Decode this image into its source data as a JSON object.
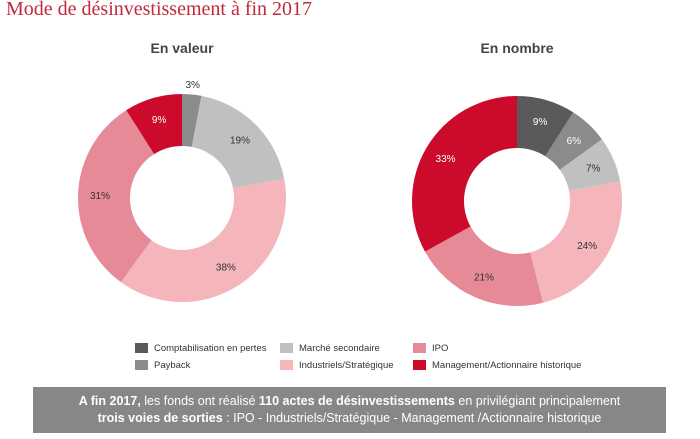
{
  "page": {
    "title": "Mode de désinvestissement à fin 2017"
  },
  "colors": {
    "title": "#c0283c",
    "banner_bg": "#87878a"
  },
  "categories": [
    {
      "name": "Comptabilisation en pertes",
      "color": "#5a5a5b"
    },
    {
      "name": "Payback",
      "color": "#8b8b8d"
    },
    {
      "name": "Marché secondaire",
      "color": "#c0c0c0"
    },
    {
      "name": "Industriels/Stratégique",
      "color": "#f4b6bb"
    },
    {
      "name": "IPO",
      "color": "#e68a98"
    },
    {
      "name": "Management/Actionnaire historique",
      "color": "#cc0a2c"
    }
  ],
  "chart_data": [
    {
      "type": "pie",
      "variant": "donut",
      "title": "En valeur",
      "slices": [
        {
          "category": "Comptabilisation en pertes",
          "value": 0,
          "label": ""
        },
        {
          "category": "Payback",
          "value": 3,
          "label": "3%"
        },
        {
          "category": "Marché secondaire",
          "value": 19,
          "label": "19%"
        },
        {
          "category": "Industriels/Stratégique",
          "value": 38,
          "label": "38%"
        },
        {
          "category": "IPO",
          "value": 31,
          "label": "31%"
        },
        {
          "category": "Management/Actionnaire historique",
          "value": 9,
          "label": "9%"
        }
      ],
      "start": "top",
      "direction": "clockwise"
    },
    {
      "type": "pie",
      "variant": "donut",
      "title": "En nombre",
      "slices": [
        {
          "category": "Comptabilisation en pertes",
          "value": 9,
          "label": "9%"
        },
        {
          "category": "Payback",
          "value": 6,
          "label": "6%"
        },
        {
          "category": "Marché secondaire",
          "value": 7,
          "label": "7%"
        },
        {
          "category": "Industriels/Stratégique",
          "value": 24,
          "label": "24%"
        },
        {
          "category": "IPO",
          "value": 21,
          "label": "21%"
        },
        {
          "category": "Management/Actionnaire historique",
          "value": 33,
          "label": "33%"
        }
      ],
      "start": "top",
      "direction": "clockwise"
    }
  ],
  "legend": {
    "items": [
      {
        "label": "Comptabilisation en pertes"
      },
      {
        "label": "Payback"
      },
      {
        "label": "Marché secondaire"
      },
      {
        "label": "Industriels/Stratégique"
      },
      {
        "label": "IPO"
      },
      {
        "label": "Management/Actionnaire historique"
      }
    ]
  },
  "banner": {
    "line1": [
      {
        "text": "A fin 2017,",
        "bold": true
      },
      {
        "text": " les fonds ont réalisé ",
        "bold": false
      },
      {
        "text": "110 actes de désinvestissements",
        "bold": true
      },
      {
        "text": " en privilégiant principalement",
        "bold": false
      }
    ],
    "line2": [
      {
        "text": "trois voies de sorties",
        "bold": true
      },
      {
        "text": " : IPO - Industriels/Stratégique - Management /Actionnaire historique",
        "bold": false
      }
    ]
  }
}
